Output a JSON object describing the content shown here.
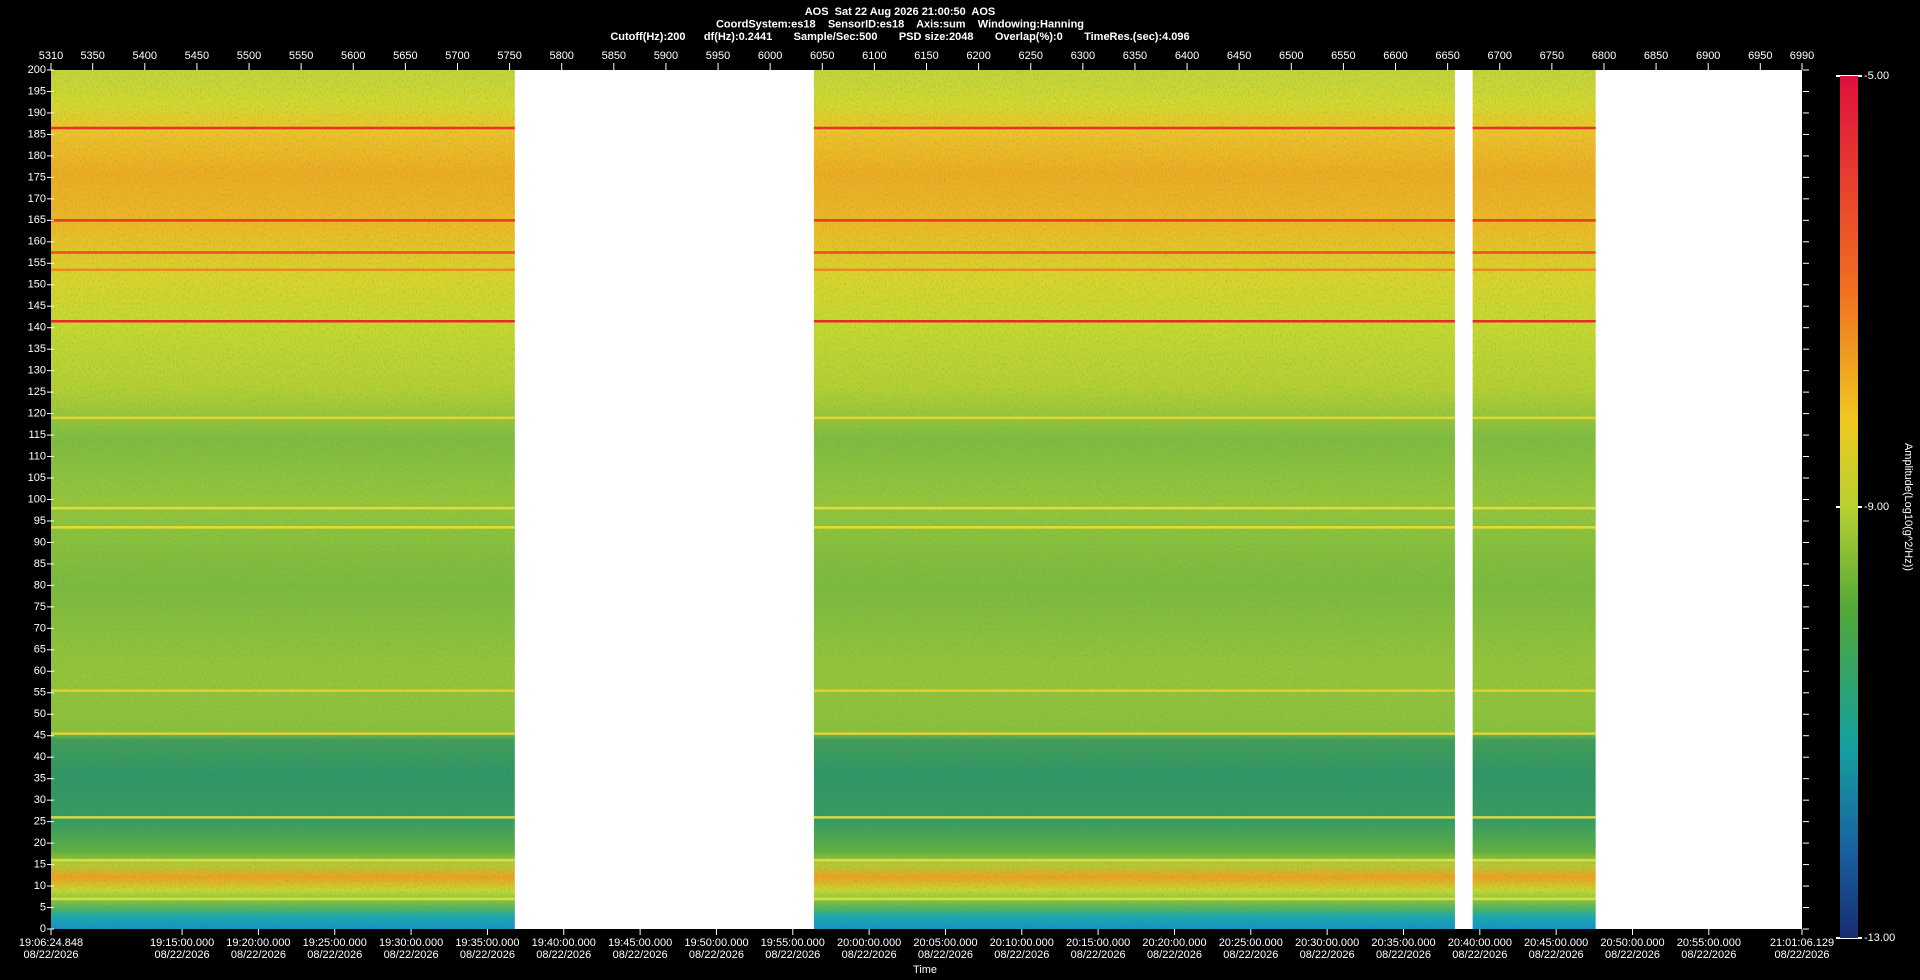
{
  "chart_data": {
    "type": "spectrogram",
    "title_lines": [
      "AOS  Sat 22 Aug 2026 21:00:50  AOS",
      "CoordSystem:es18    SensorID:es18    Axis:sum    Windowing:Hanning",
      "Cutoff(Hz):200      df(Hz):0.2441       Sample/Sec:500       PSD size:2048       Overlap(%):0       TimeRes.(sec):4.096"
    ],
    "xlabel": "Time",
    "xlim": [
      5310,
      6990
    ],
    "xticks": [
      5310,
      5350,
      5400,
      5450,
      5500,
      5550,
      5600,
      5650,
      5700,
      5750,
      5800,
      5850,
      5900,
      5950,
      6000,
      6050,
      6100,
      6150,
      6200,
      6250,
      6300,
      6350,
      6400,
      6450,
      6500,
      6550,
      6600,
      6650,
      6700,
      6750,
      6800,
      6850,
      6900,
      6950,
      6990
    ],
    "ylim": [
      0,
      200
    ],
    "yticks": [
      0,
      5,
      10,
      15,
      20,
      25,
      30,
      35,
      40,
      45,
      50,
      55,
      60,
      65,
      70,
      75,
      80,
      85,
      90,
      95,
      100,
      105,
      110,
      115,
      120,
      125,
      130,
      135,
      140,
      145,
      150,
      155,
      160,
      165,
      170,
      175,
      180,
      185,
      190,
      195,
      200
    ],
    "time_ticks": [
      {
        "time": "19:06:24.848",
        "date": "08/22/2026"
      },
      {
        "time": "19:15:00.000",
        "date": "08/22/2026"
      },
      {
        "time": "19:20:00.000",
        "date": "08/22/2026"
      },
      {
        "time": "19:25:00.000",
        "date": "08/22/2026"
      },
      {
        "time": "19:30:00.000",
        "date": "08/22/2026"
      },
      {
        "time": "19:35:00.000",
        "date": "08/22/2026"
      },
      {
        "time": "19:40:00.000",
        "date": "08/22/2026"
      },
      {
        "time": "19:45:00.000",
        "date": "08/22/2026"
      },
      {
        "time": "19:50:00.000",
        "date": "08/22/2026"
      },
      {
        "time": "19:55:00.000",
        "date": "08/22/2026"
      },
      {
        "time": "20:00:00.000",
        "date": "08/22/2026"
      },
      {
        "time": "20:05:00.000",
        "date": "08/22/2026"
      },
      {
        "time": "20:10:00.000",
        "date": "08/22/2026"
      },
      {
        "time": "20:15:00.000",
        "date": "08/22/2026"
      },
      {
        "time": "20:20:00.000",
        "date": "08/22/2026"
      },
      {
        "time": "20:25:00.000",
        "date": "08/22/2026"
      },
      {
        "time": "20:30:00.000",
        "date": "08/22/2026"
      },
      {
        "time": "20:35:00.000",
        "date": "08/22/2026"
      },
      {
        "time": "20:40:00.000",
        "date": "08/22/2026"
      },
      {
        "time": "20:45:00.000",
        "date": "08/22/2026"
      },
      {
        "time": "20:50:00.000",
        "date": "08/22/2026"
      },
      {
        "time": "20:55:00.000",
        "date": "08/22/2026"
      },
      {
        "time": "21:01:06.129",
        "date": "08/22/2026"
      }
    ],
    "segments": [
      [
        5310,
        5755
      ],
      [
        6042,
        6657
      ],
      [
        6674,
        6792
      ]
    ],
    "tones": [
      {
        "freq": 186.5,
        "color": "#e8202a"
      },
      {
        "freq": 165,
        "color": "#e82a20"
      },
      {
        "freq": 157.5,
        "color": "#e8402a"
      },
      {
        "freq": 153.5,
        "color": "#f08020"
      },
      {
        "freq": 141.5,
        "color": "#e81828"
      },
      {
        "freq": 119,
        "color": "#f0d830"
      },
      {
        "freq": 98,
        "color": "#e8e040"
      },
      {
        "freq": 93.5,
        "color": "#f0e030"
      },
      {
        "freq": 55.5,
        "color": "#f0d020"
      },
      {
        "freq": 45.5,
        "color": "#e8d838"
      },
      {
        "freq": 26,
        "color": "#e8e040"
      },
      {
        "freq": 16,
        "color": "#e0e040"
      },
      {
        "freq": 7,
        "color": "#e0e040"
      }
    ],
    "colorbar": {
      "title": "Amplitude(Log10(g^2/Hz))",
      "lim": [
        -13,
        -5
      ],
      "ticks": [
        {
          "value": -5,
          "label": "-5.00"
        },
        {
          "value": -9,
          "label": "-9.00"
        },
        {
          "value": -13,
          "label": "-13.00"
        }
      ]
    }
  }
}
